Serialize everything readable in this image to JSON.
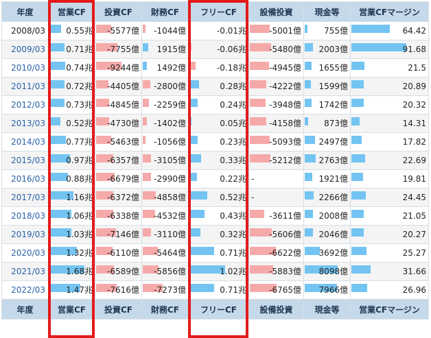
{
  "headers": [
    "年度",
    "営業CF",
    "投資CF",
    "財務CF",
    "フリーCF",
    "設備投資",
    "現金等",
    "営業CFマージン"
  ],
  "rows": [
    {
      "year": "2008/03",
      "op": "0.55兆",
      "inv": "-5577億",
      "fin": "-1044億",
      "free": "-0.01兆",
      "capex": "-5001億",
      "cash": "755億",
      "margin": "64.42"
    },
    {
      "year": "2009/03",
      "op": "0.71兆",
      "inv": "-7755億",
      "fin": "1915億",
      "free": "-0.06兆",
      "capex": "-5480億",
      "cash": "2003億",
      "margin": "91.68"
    },
    {
      "year": "2010/03",
      "op": "0.74兆",
      "inv": "-9244億",
      "fin": "1492億",
      "free": "-0.18兆",
      "capex": "-4945億",
      "cash": "1655億",
      "margin": "21.5"
    },
    {
      "year": "2011/03",
      "op": "0.72兆",
      "inv": "-4405億",
      "fin": "-2800億",
      "free": "0.28兆",
      "capex": "-4222億",
      "cash": "1599億",
      "margin": "20.89"
    },
    {
      "year": "2012/03",
      "op": "0.73兆",
      "inv": "-4845億",
      "fin": "-2259億",
      "free": "0.24兆",
      "capex": "-3948億",
      "cash": "1742億",
      "margin": "20.32"
    },
    {
      "year": "2013/03",
      "op": "0.52兆",
      "inv": "-4730億",
      "fin": "-1402億",
      "free": "0.05兆",
      "capex": "-4158億",
      "cash": "873億",
      "margin": "14.31"
    },
    {
      "year": "2014/03",
      "op": "0.77兆",
      "inv": "-5463億",
      "fin": "-1056億",
      "free": "0.23兆",
      "capex": "-5093億",
      "cash": "2497億",
      "margin": "17.82"
    },
    {
      "year": "2015/03",
      "op": "0.97兆",
      "inv": "-6357億",
      "fin": "-3105億",
      "free": "0.33兆",
      "capex": "-5212億",
      "cash": "2763億",
      "margin": "22.69"
    },
    {
      "year": "2016/03",
      "op": "0.88兆",
      "inv": "-6679億",
      "fin": "-2990億",
      "free": "0.22兆",
      "capex": "-",
      "cash": "1921億",
      "margin": "19.81"
    },
    {
      "year": "2017/03",
      "op": "1.16兆",
      "inv": "-6372億",
      "fin": "-4858億",
      "free": "0.52兆",
      "capex": "-",
      "cash": "2266億",
      "margin": "24.45"
    },
    {
      "year": "2018/03",
      "op": "1.06兆",
      "inv": "-6338億",
      "fin": "-4532億",
      "free": "0.43兆",
      "capex": "-3611億",
      "cash": "2008億",
      "margin": "21.05"
    },
    {
      "year": "2019/03",
      "op": "1.03兆",
      "inv": "-7146億",
      "fin": "-3110億",
      "free": "0.32兆",
      "capex": "-5606億",
      "cash": "2046億",
      "margin": "20.27"
    },
    {
      "year": "2020/03",
      "op": "1.32兆",
      "inv": "-6110億",
      "fin": "-5464億",
      "free": "0.71兆",
      "capex": "-6622億",
      "cash": "3692億",
      "margin": "25.27"
    },
    {
      "year": "2021/03",
      "op": "1.68兆",
      "inv": "-6589億",
      "fin": "-5856億",
      "free": "1.02兆",
      "capex": "-5883億",
      "cash": "8098億",
      "margin": "31.66"
    },
    {
      "year": "2022/03",
      "op": "1.47兆",
      "inv": "-7616億",
      "fin": "-7273億",
      "free": "0.71兆",
      "capex": "-6765億",
      "cash": "7966億",
      "margin": "26.96"
    }
  ],
  "colors": {
    "positive_bar": "#73c4f2",
    "negative_bar": "#f6a9a9",
    "header_bg": "#c5d9ea",
    "highlight": "#e21b1b",
    "year_link": "#2a62a8"
  }
}
